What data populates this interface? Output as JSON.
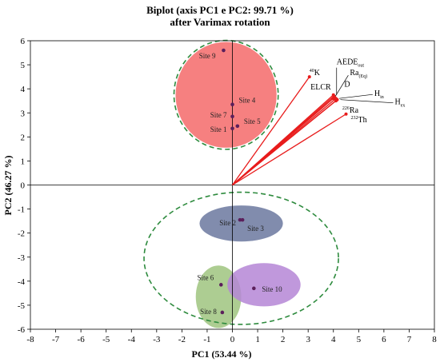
{
  "chart_data": {
    "type": "scatter",
    "title": "Biplot (axis PC1 e PC2: 99.71 %)",
    "subtitle": "after Varimax rotation",
    "xlabel": "PC1 (53.44 %)",
    "ylabel": "PC2 (46.27 %)",
    "xlim": [
      -8,
      8
    ],
    "ylim": [
      -6,
      6
    ],
    "xticks": [
      -8,
      -7,
      -6,
      -5,
      -4,
      -3,
      -2,
      -1,
      0,
      1,
      2,
      3,
      4,
      5,
      6,
      7,
      8
    ],
    "yticks": [
      -6,
      -5,
      -4,
      -3,
      -2,
      -1,
      0,
      1,
      2,
      3,
      4,
      5,
      6
    ],
    "grid": false,
    "colors": {
      "points": "#5b1f5b",
      "vector": "#e81c1c",
      "cluster_red": "#f46a6a",
      "cluster_blue": "#6b789f",
      "cluster_green": "#9fc47f",
      "cluster_purple": "#b586d6",
      "dashed_ring": "#2e8b3e"
    },
    "points": [
      {
        "label": "Site 1",
        "x": 0.0,
        "y": 2.35
      },
      {
        "label": "Site 2",
        "x": 0.3,
        "y": -1.45
      },
      {
        "label": "Site 3",
        "x": 0.4,
        "y": -1.45
      },
      {
        "label": "Site 4",
        "x": 0.0,
        "y": 3.35
      },
      {
        "label": "Site 5",
        "x": 0.2,
        "y": 2.45
      },
      {
        "label": "Site 6",
        "x": -0.45,
        "y": -4.15
      },
      {
        "label": "Site 7",
        "x": 0.0,
        "y": 2.85
      },
      {
        "label": "Site 8",
        "x": -0.4,
        "y": -5.3
      },
      {
        "label": "Site 9",
        "x": -0.35,
        "y": 5.6
      },
      {
        "label": "Site 10",
        "x": 0.85,
        "y": -4.3
      }
    ],
    "vectors": [
      {
        "label": "K",
        "sup": "40",
        "sub": "",
        "x": 3.05,
        "y": 4.5
      },
      {
        "label": "AEDE",
        "sup": "",
        "sub": "out",
        "x": 4.0,
        "y": 3.75
      },
      {
        "label": "Ra",
        "sup": "",
        "sub": "(Eq)",
        "x": 4.02,
        "y": 3.7
      },
      {
        "label": "D",
        "sup": "",
        "sub": "",
        "x": 4.05,
        "y": 3.65
      },
      {
        "label": "ELCR",
        "sup": "",
        "sub": "",
        "x": 3.98,
        "y": 3.6
      },
      {
        "label": "H",
        "sup": "",
        "sub": "in",
        "x": 4.1,
        "y": 3.6
      },
      {
        "label": "H",
        "sup": "",
        "sub": "ex",
        "x": 4.15,
        "y": 3.55
      },
      {
        "label": "Ra",
        "sup": "226",
        "sub": "",
        "x": 4.1,
        "y": 3.5
      },
      {
        "label": "Th",
        "sup": "232",
        "sub": "",
        "x": 4.5,
        "y": 2.95
      }
    ],
    "clusters": [
      {
        "name": "upper",
        "cx": -0.25,
        "cy": 3.75,
        "rx": 2.0,
        "ry": 2.2,
        "fill": "cluster_red",
        "ring": true
      },
      {
        "name": "blue",
        "cx": 0.35,
        "cy": -1.6,
        "rx": 1.65,
        "ry": 0.75,
        "fill": "cluster_blue",
        "ring": false
      },
      {
        "name": "green",
        "cx": -0.55,
        "cy": -4.65,
        "rx": 0.9,
        "ry": 1.3,
        "fill": "cluster_green",
        "ring": false
      },
      {
        "name": "purple",
        "cx": 1.25,
        "cy": -4.15,
        "rx": 1.45,
        "ry": 0.9,
        "fill": "cluster_purple",
        "ring": false
      },
      {
        "name": "lower-ring",
        "cx": 0.35,
        "cy": -3.05,
        "rx": 3.85,
        "ry": 2.75,
        "fill": "",
        "ring": true
      }
    ]
  }
}
